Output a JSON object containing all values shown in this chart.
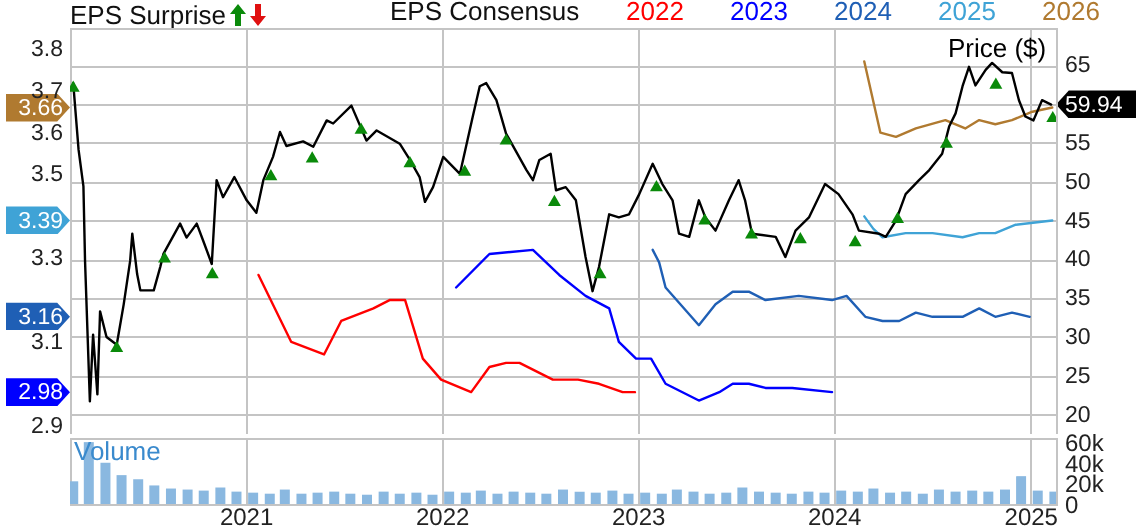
{
  "chart_data": [
    {
      "type": "line",
      "title": "EPS Surprise",
      "legend_title": "EPS Consensus",
      "legend": "top",
      "grid": true,
      "tick_labels": "y",
      "xlim": [
        "2020-02-09",
        "2025-02-18"
      ],
      "xticks": [
        "2021",
        "2022",
        "2023",
        "2024",
        "2025"
      ],
      "ylim": [
        2.88,
        3.85
      ],
      "yticks": [
        2.9,
        2.98,
        3.1,
        3.16,
        3.3,
        3.39,
        3.5,
        3.6,
        3.66,
        3.7,
        3.8
      ],
      "y2lim": [
        17.5,
        69.8
      ],
      "y2ticks": [
        20,
        25,
        30,
        35,
        40,
        45,
        50,
        55,
        59.94,
        65
      ],
      "series": [
        {
          "name": "2022",
          "color": "#ff0000",
          "x": [
            "2021-01-25",
            "2021-03-27",
            "2021-05-27",
            "2021-06-28",
            "2021-08-27",
            "2021-09-26",
            "2021-10-25",
            "2021-11-27",
            "2021-12-31",
            "2022-02-25",
            "2022-03-31",
            "2022-05-01",
            "2022-05-26",
            "2022-07-27",
            "2022-09-12",
            "2022-10-21",
            "2022-12-04",
            "2022-12-27"
          ],
          "values": [
            3.26,
            3.1,
            3.07,
            3.15,
            3.18,
            3.2,
            3.2,
            3.06,
            3.01,
            2.98,
            3.04,
            3.05,
            3.05,
            3.01,
            3.01,
            3.0,
            2.98,
            2.98
          ]
        },
        {
          "name": "2023",
          "color": "#0000ff",
          "x": [
            "2022-01-28",
            "2022-03-31",
            "2022-06-20",
            "2022-08-08",
            "2022-09-26",
            "2022-11-09",
            "2022-11-27",
            "2022-12-29",
            "2023-01-26",
            "2023-02-22",
            "2023-04-25",
            "2023-06-02",
            "2023-06-27",
            "2023-07-27",
            "2023-08-27",
            "2023-10-16",
            "2023-12-29"
          ],
          "values": [
            3.23,
            3.31,
            3.32,
            3.26,
            3.21,
            3.18,
            3.1,
            3.06,
            3.06,
            3.0,
            2.96,
            2.98,
            3.0,
            3.0,
            2.99,
            2.99,
            2.98
          ]
        },
        {
          "name": "2024",
          "color": "#1f5fb5",
          "x": [
            "2023-01-29",
            "2023-02-10",
            "2023-02-22",
            "2023-04-25",
            "2023-05-26",
            "2023-06-27",
            "2023-07-27",
            "2023-08-27",
            "2023-10-28",
            "2023-12-29",
            "2024-01-25",
            "2024-02-29",
            "2024-04-01",
            "2024-05-02",
            "2024-06-02",
            "2024-07-03",
            "2024-08-28",
            "2024-09-28",
            "2024-10-28",
            "2024-11-28",
            "2024-12-31"
          ],
          "values": [
            3.32,
            3.29,
            3.23,
            3.14,
            3.19,
            3.22,
            3.22,
            3.2,
            3.21,
            3.2,
            3.21,
            3.16,
            3.15,
            3.15,
            3.17,
            3.16,
            3.16,
            3.18,
            3.16,
            3.17,
            3.16
          ]
        },
        {
          "name": "2025",
          "color": "#3fa3d6",
          "x": [
            "2024-02-27",
            "2024-03-15",
            "2024-04-01",
            "2024-05-14",
            "2024-07-03",
            "2024-08-28",
            "2024-09-28",
            "2024-10-28",
            "2024-12-05",
            "2025-02-11"
          ],
          "values": [
            3.4,
            3.37,
            3.35,
            3.36,
            3.36,
            3.35,
            3.36,
            3.36,
            3.38,
            3.39
          ]
        },
        {
          "name": "2026",
          "color": "#b07a30",
          "x": [
            "2024-02-27",
            "2024-03-28",
            "2024-04-26",
            "2024-06-02",
            "2024-07-27",
            "2024-09-02",
            "2024-09-28",
            "2024-10-28",
            "2024-11-28",
            "2025-01-05",
            "2025-02-11"
          ],
          "values": [
            3.77,
            3.6,
            3.59,
            3.61,
            3.63,
            3.61,
            3.63,
            3.62,
            3.63,
            3.65,
            3.66
          ]
        },
        {
          "name": "Price ($)",
          "color": "#000000",
          "axis": "y2",
          "x": [
            "2020-02-15",
            "2020-02-25",
            "2020-03-05",
            "2020-03-08",
            "2020-03-17",
            "2020-03-23",
            "2020-03-31",
            "2020-04-05",
            "2020-04-17",
            "2020-05-06",
            "2020-05-19",
            "2020-05-31",
            "2020-06-04",
            "2020-06-13",
            "2020-06-19",
            "2020-07-14",
            "2020-07-26",
            "2020-08-01",
            "2020-09-01",
            "2020-09-13",
            "2020-10-02",
            "2020-10-14",
            "2020-10-30",
            "2020-11-08",
            "2020-11-20",
            "2020-12-11",
            "2021-01-03",
            "2021-01-21",
            "2021-02-03",
            "2021-02-21",
            "2021-03-06",
            "2021-03-18",
            "2021-04-18",
            "2021-05-07",
            "2021-06-01",
            "2021-06-13",
            "2021-07-17",
            "2021-08-14",
            "2021-09-02",
            "2021-10-15",
            "2021-11-03",
            "2021-11-21",
            "2021-12-01",
            "2021-12-16",
            "2022-01-04",
            "2022-02-04",
            "2022-02-28",
            "2022-03-13",
            "2022-03-25",
            "2022-04-13",
            "2022-05-01",
            "2022-06-08",
            "2022-06-20",
            "2022-07-02",
            "2022-07-23",
            "2022-08-02",
            "2022-08-20",
            "2022-09-08",
            "2022-09-26",
            "2022-10-09",
            "2022-10-21",
            "2022-11-09",
            "2022-11-27",
            "2022-12-16",
            "2023-01-04",
            "2023-01-29",
            "2023-02-16",
            "2023-03-07",
            "2023-03-19",
            "2023-04-07",
            "2023-04-25",
            "2023-05-07",
            "2023-05-26",
            "2023-06-20",
            "2023-07-08",
            "2023-07-20",
            "2023-08-02",
            "2023-09-15",
            "2023-10-03",
            "2023-10-22",
            "2023-11-16",
            "2023-12-16",
            "2024-01-10",
            "2024-02-05",
            "2024-02-17",
            "2024-03-26",
            "2024-04-07",
            "2024-04-26",
            "2024-05-14",
            "2024-06-08",
            "2024-06-27",
            "2024-07-21",
            "2024-08-03",
            "2024-08-15",
            "2024-08-28",
            "2024-09-09",
            "2024-09-21",
            "2024-10-10",
            "2024-10-22",
            "2024-11-10",
            "2024-11-28",
            "2024-12-11",
            "2024-12-23",
            "2025-01-07",
            "2025-01-23",
            "2025-02-09"
          ],
          "values": [
            62.7,
            54.1,
            49.4,
            39.8,
            21.7,
            30.3,
            22.6,
            33.3,
            30.0,
            29.0,
            34.2,
            39.8,
            43.3,
            38.1,
            36.0,
            36.0,
            39.0,
            40.7,
            44.6,
            42.8,
            44.6,
            42.4,
            39.4,
            50.2,
            48.0,
            50.6,
            47.6,
            46.0,
            50.2,
            53.2,
            56.4,
            54.6,
            55.2,
            54.5,
            57.9,
            57.5,
            59.8,
            55.3,
            56.6,
            54.9,
            52.8,
            50.6,
            47.4,
            49.3,
            53.2,
            51.0,
            58.4,
            62.3,
            62.7,
            60.5,
            56.2,
            51.5,
            50.2,
            52.8,
            53.6,
            48.9,
            49.3,
            47.6,
            40.3,
            35.9,
            39.0,
            45.8,
            45.4,
            45.8,
            48.4,
            52.3,
            49.7,
            47.6,
            43.3,
            42.9,
            47.6,
            45.4,
            43.7,
            47.6,
            50.2,
            47.6,
            43.3,
            42.9,
            40.3,
            43.7,
            45.4,
            49.7,
            48.4,
            45.8,
            43.7,
            43.3,
            42.9,
            45.0,
            48.4,
            50.2,
            51.5,
            53.6,
            57.1,
            58.8,
            62.3,
            64.8,
            62.4,
            64.4,
            65.3,
            64.1,
            64.0,
            60.5,
            58.4,
            57.9,
            60.5,
            59.94
          ]
        },
        {
          "type": "scatter",
          "color": "#0a8a0a",
          "axis": "y2",
          "marker": "triangle",
          "x": [
            "2020-02-15",
            "2020-05-06",
            "2020-08-03",
            "2020-10-31",
            "2021-02-17",
            "2021-05-05",
            "2021-08-04",
            "2021-11-03",
            "2022-02-13",
            "2022-05-01",
            "2022-07-30",
            "2022-10-23",
            "2023-02-05",
            "2023-05-06",
            "2023-08-01",
            "2023-10-31",
            "2024-02-10",
            "2024-04-29",
            "2024-07-29",
            "2024-10-29",
            "2025-02-12"
          ],
          "values": [
            62.3,
            28.8,
            40.3,
            38.3,
            50.9,
            53.2,
            56.9,
            52.6,
            51.5,
            55.5,
            47.6,
            38.3,
            49.5,
            45.2,
            43.4,
            42.8,
            42.4,
            45.4,
            55.1,
            62.7,
            58.4
          ]
        }
      ]
    },
    {
      "type": "bar",
      "title": "Volume",
      "color": "#8ab8e0",
      "grid": "x",
      "xlim": [
        "2020-02-09",
        "2025-02-18"
      ],
      "xticks": [
        "2021",
        "2022",
        "2023",
        "2024",
        "2025"
      ],
      "ylim": [
        0,
        64000
      ],
      "yticks": [
        0,
        {
          "value": 20000,
          "label": "20k"
        },
        {
          "value": 40000,
          "label": "40k"
        },
        {
          "value": 60000,
          "label": "60k"
        }
      ],
      "x": [
        "2020-02-15",
        "2020-03-15",
        "2020-04-15",
        "2020-05-15",
        "2020-06-15",
        "2020-07-15",
        "2020-08-15",
        "2020-09-15",
        "2020-10-15",
        "2020-11-15",
        "2020-12-15",
        "2021-01-15",
        "2021-02-15",
        "2021-03-15",
        "2021-04-15",
        "2021-05-15",
        "2021-06-15",
        "2021-07-15",
        "2021-08-15",
        "2021-09-15",
        "2021-10-15",
        "2021-11-15",
        "2021-12-15",
        "2022-01-15",
        "2022-02-15",
        "2022-03-15",
        "2022-04-15",
        "2022-05-15",
        "2022-06-15",
        "2022-07-15",
        "2022-08-15",
        "2022-09-15",
        "2022-10-15",
        "2022-11-15",
        "2022-12-15",
        "2023-01-15",
        "2023-02-15",
        "2023-03-15",
        "2023-04-15",
        "2023-05-15",
        "2023-06-15",
        "2023-07-15",
        "2023-08-15",
        "2023-09-15",
        "2023-10-15",
        "2023-11-15",
        "2023-12-15",
        "2024-01-15",
        "2024-02-15",
        "2024-03-15",
        "2024-04-15",
        "2024-05-15",
        "2024-06-15",
        "2024-07-15",
        "2024-08-15",
        "2024-09-15",
        "2024-10-15",
        "2024-11-15",
        "2024-12-15",
        "2025-01-15",
        "2025-02-15"
      ],
      "values": [
        22000,
        60000,
        40000,
        28000,
        24000,
        18000,
        15000,
        14000,
        13000,
        16000,
        12000,
        11000,
        10000,
        14000,
        10000,
        11000,
        12000,
        10000,
        9000,
        12000,
        10000,
        11000,
        9000,
        12000,
        11000,
        13000,
        10000,
        12000,
        11000,
        10000,
        14000,
        12000,
        11000,
        13000,
        10000,
        11000,
        10000,
        14000,
        12000,
        10000,
        11000,
        16000,
        12000,
        11000,
        10000,
        12000,
        11000,
        13000,
        12000,
        15000,
        11000,
        12000,
        10000,
        14000,
        12000,
        13000,
        12000,
        14000,
        27000,
        13000,
        12000
      ]
    }
  ]
}
